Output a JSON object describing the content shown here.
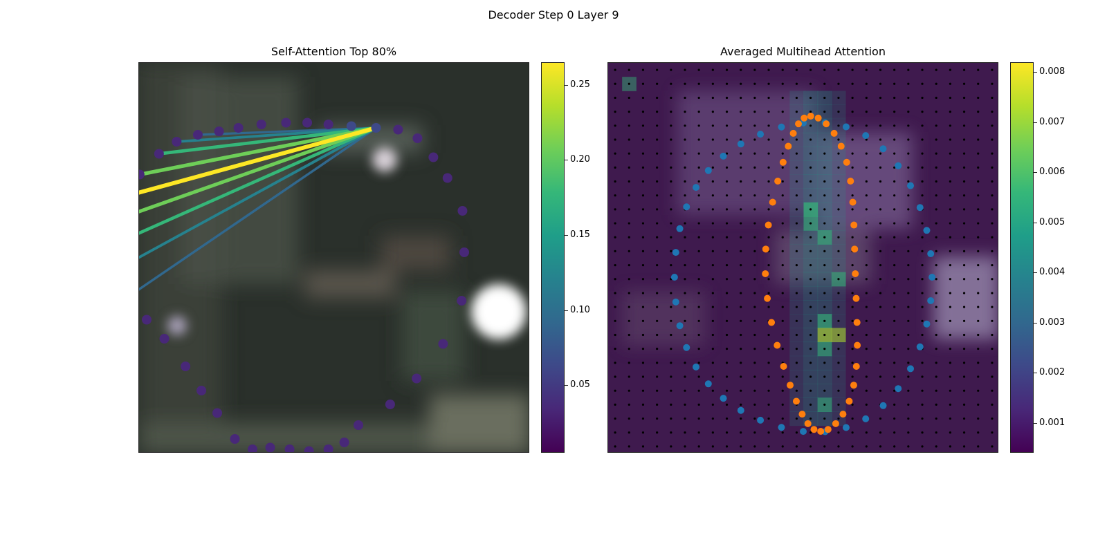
{
  "figure": {
    "title": "Decoder Step 0 Layer 9"
  },
  "chart_data": [
    {
      "type": "scatter",
      "title": "Self-Attention Top 80%",
      "description_series": "40 keypoints on a closed contour over a blurred image background; lines connect the query point to its most-attended keypoints, colored by attention weight",
      "points": [
        [
          0.5,
          0.0
        ],
        [
          0.625,
          0.01
        ],
        [
          0.735,
          0.06
        ],
        [
          0.825,
          0.17
        ],
        [
          0.905,
          0.29
        ],
        [
          0.99,
          0.48
        ],
        [
          1.0,
          0.72
        ],
        [
          0.985,
          1.0
        ],
        [
          0.88,
          1.25
        ],
        [
          0.73,
          1.45
        ],
        [
          0.58,
          1.6
        ],
        [
          0.4,
          1.72
        ],
        [
          0.32,
          1.82
        ],
        [
          0.23,
          1.86
        ],
        [
          0.12,
          1.87
        ],
        [
          0.01,
          1.86
        ],
        [
          -0.1,
          1.85
        ],
        [
          -0.2,
          1.86
        ],
        [
          -0.3,
          1.8
        ],
        [
          -0.4,
          1.65
        ],
        [
          -0.49,
          1.52
        ],
        [
          -0.58,
          1.38
        ],
        [
          -0.7,
          1.22
        ],
        [
          -0.8,
          1.11
        ],
        [
          -0.88,
          0.96
        ],
        [
          -0.97,
          0.82
        ],
        [
          -1.0,
          0.68
        ],
        [
          -0.97,
          0.53
        ],
        [
          -0.9,
          0.39
        ],
        [
          -0.84,
          0.27
        ],
        [
          -0.73,
          0.15
        ],
        [
          -0.63,
          0.08
        ],
        [
          -0.51,
          0.04
        ],
        [
          -0.39,
          0.02
        ],
        [
          -0.28,
          0.0
        ],
        [
          -0.15,
          -0.02
        ],
        [
          -0.01,
          -0.03
        ],
        [
          0.11,
          -0.03
        ],
        [
          0.23,
          -0.02
        ],
        [
          0.36,
          -0.01
        ]
      ],
      "attention_edges": [
        {
          "to_index": 24,
          "weight": 0.1
        },
        {
          "to_index": 25,
          "weight": 0.13
        },
        {
          "to_index": 26,
          "weight": 0.17
        },
        {
          "to_index": 27,
          "weight": 0.21
        },
        {
          "to_index": 28,
          "weight": 0.26
        },
        {
          "to_index": 29,
          "weight": 0.22
        },
        {
          "to_index": 30,
          "weight": 0.18
        },
        {
          "to_index": 31,
          "weight": 0.12
        },
        {
          "to_index": 32,
          "weight": 0.09
        }
      ],
      "colorbar": {
        "min": 0.005,
        "max": 0.265,
        "ticks": [
          0.05,
          0.1,
          0.15,
          0.2,
          0.25
        ],
        "tick_labels": [
          "0.05",
          "0.10",
          "0.15",
          "0.20",
          "0.25"
        ],
        "colormap": "viridis"
      }
    },
    {
      "type": "heatmap",
      "title": "Averaged Multihead Attention",
      "grid": {
        "rows": 28,
        "cols": 28
      },
      "series": [
        {
          "color": "#1f77b4"
        },
        {
          "color": "#ff7f0e"
        }
      ],
      "colorbar": {
        "min": 0.0004,
        "max": 0.0082,
        "ticks": [
          0.001,
          0.002,
          0.003,
          0.004,
          0.005,
          0.006,
          0.007,
          0.008
        ],
        "tick_labels": [
          "0.001",
          "0.002",
          "0.003",
          "0.004",
          "0.005",
          "0.006",
          "0.007",
          "0.008"
        ],
        "colormap": "viridis"
      }
    }
  ]
}
